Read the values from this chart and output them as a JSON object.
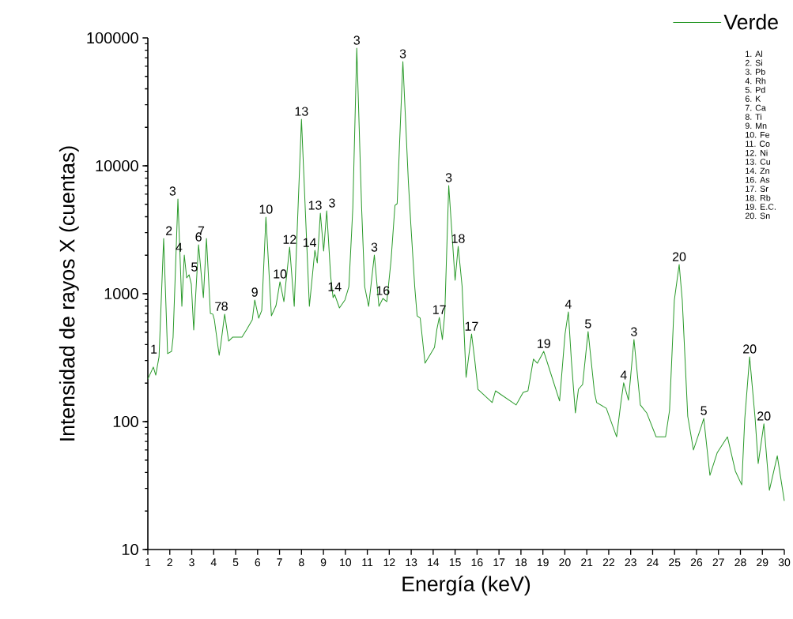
{
  "chart_data": {
    "type": "line",
    "xlabel": "Energía (keV)",
    "ylabel": "Intensidad de rayos X (cuentas)",
    "xlim": [
      1,
      30
    ],
    "ylim": [
      10,
      100000
    ],
    "log": "y",
    "xticks": [
      1,
      2,
      3,
      4,
      5,
      6,
      7,
      8,
      9,
      10,
      11,
      12,
      13,
      14,
      15,
      16,
      17,
      18,
      19,
      20,
      21,
      22,
      23,
      24,
      25,
      26,
      27,
      28,
      29,
      30
    ],
    "yticks": [
      10,
      100,
      1000,
      10000,
      100000
    ],
    "legend": "top right",
    "marker": "none",
    "line_style": "solid",
    "series": [
      {
        "name": "Verde",
        "color": "#2a9a2a",
        "x": [
          1.0,
          1.25,
          1.36,
          1.51,
          1.72,
          1.9,
          2.08,
          2.15,
          2.37,
          2.55,
          2.66,
          2.77,
          2.88,
          2.98,
          3.09,
          3.31,
          3.53,
          3.67,
          3.85,
          3.96,
          4.03,
          4.25,
          4.32,
          4.5,
          4.68,
          4.86,
          5.29,
          5.51,
          5.76,
          5.87,
          6.05,
          6.19,
          6.38,
          6.63,
          6.84,
          7.02,
          7.2,
          7.46,
          7.67,
          8.0,
          8.36,
          8.61,
          8.72,
          8.86,
          9.01,
          9.15,
          9.33,
          9.44,
          9.51,
          9.73,
          9.98,
          10.16,
          10.34,
          10.52,
          10.74,
          10.88,
          11.06,
          11.32,
          11.53,
          11.71,
          11.89,
          12.08,
          12.26,
          12.36,
          12.62,
          12.87,
          12.98,
          13.16,
          13.27,
          13.41,
          13.63,
          14.06,
          14.17,
          14.28,
          14.42,
          14.53,
          14.71,
          15.0,
          15.14,
          15.32,
          15.5,
          15.75,
          15.9,
          16.04,
          16.69,
          16.84,
          17.78,
          18.1,
          18.32,
          18.57,
          18.75,
          19.04,
          19.36,
          19.76,
          20.01,
          20.16,
          20.3,
          20.48,
          20.62,
          20.81,
          21.06,
          21.35,
          21.45,
          21.89,
          22.36,
          22.54,
          22.68,
          22.9,
          23.15,
          23.44,
          23.73,
          24.16,
          24.59,
          24.77,
          24.99,
          25.21,
          25.35,
          25.6,
          25.86,
          26.22,
          26.33,
          26.61,
          26.94,
          27.41,
          27.77,
          28.06,
          28.2,
          28.42,
          28.67,
          28.81,
          29.07,
          29.32,
          29.68,
          30.0
        ],
        "values": [
          215,
          267,
          231,
          321,
          2704,
          340,
          354,
          457,
          5508,
          796,
          2006,
          1328,
          1406,
          1186,
          520,
          2415,
          931,
          2704,
          701,
          692,
          626,
          330,
          397,
          692,
          426,
          457,
          457,
          527,
          626,
          893,
          644,
          741,
          3970,
          671,
          807,
          1239,
          867,
          2312,
          796,
          23120,
          796,
          2186,
          1742,
          4266,
          2154,
          4449,
          1367,
          931,
          986,
          774,
          893,
          1136,
          4710,
          83180,
          4710,
          1136,
          796,
          2006,
          796,
          918,
          867,
          1816,
          4909,
          5056,
          65310,
          7530,
          3540,
          1136,
          671,
          644,
          286,
          380,
          527,
          653,
          438,
          701,
          7015,
          1274,
          2344,
          1136,
          222,
          484,
          298,
          179,
          141,
          174,
          135,
          169,
          174,
          308,
          286,
          354,
          238,
          145,
          484,
          721,
          298,
          117,
          179,
          195,
          506,
          169,
          141,
          127,
          76,
          135,
          201,
          147,
          438,
          135,
          117,
          76,
          76,
          122,
          893,
          1690,
          893,
          110,
          60,
          92,
          106,
          38,
          57,
          76,
          41,
          32,
          106,
          321,
          106,
          47,
          96,
          29,
          54,
          24
        ]
      }
    ],
    "annotations": [
      {
        "text": "1",
        "x": 1.51,
        "y": 321
      },
      {
        "text": "2",
        "x": 1.72,
        "y": 2704
      },
      {
        "text": "3",
        "x": 2.37,
        "y": 5508
      },
      {
        "text": "4",
        "x": 2.66,
        "y": 2006
      },
      {
        "text": "5",
        "x": 2.88,
        "y": 1406
      },
      {
        "text": "6",
        "x": 3.31,
        "y": 2415
      },
      {
        "text": "7",
        "x": 3.67,
        "y": 2704
      },
      {
        "text": "7",
        "x": 3.96,
        "y": 692
      },
      {
        "text": "8",
        "x": 4.5,
        "y": 692
      },
      {
        "text": "9",
        "x": 5.87,
        "y": 893
      },
      {
        "text": "10",
        "x": 6.38,
        "y": 3970
      },
      {
        "text": "10",
        "x": 7.02,
        "y": 1239
      },
      {
        "text": "12",
        "x": 7.46,
        "y": 2312
      },
      {
        "text": "13",
        "x": 8.0,
        "y": 23120
      },
      {
        "text": "14",
        "x": 8.61,
        "y": 2186
      },
      {
        "text": "13",
        "x": 8.86,
        "y": 4266
      },
      {
        "text": "3",
        "x": 9.15,
        "y": 4449
      },
      {
        "text": "14",
        "x": 9.51,
        "y": 986
      },
      {
        "text": "3",
        "x": 10.52,
        "y": 83180
      },
      {
        "text": "3",
        "x": 11.32,
        "y": 2006
      },
      {
        "text": "16",
        "x": 11.71,
        "y": 918
      },
      {
        "text": "3",
        "x": 12.62,
        "y": 65310
      },
      {
        "text": "17",
        "x": 14.28,
        "y": 653
      },
      {
        "text": "3",
        "x": 14.71,
        "y": 7015
      },
      {
        "text": "18",
        "x": 15.14,
        "y": 2344
      },
      {
        "text": "17",
        "x": 15.75,
        "y": 484
      },
      {
        "text": "19",
        "x": 19.04,
        "y": 354
      },
      {
        "text": "4",
        "x": 20.16,
        "y": 721
      },
      {
        "text": "5",
        "x": 21.06,
        "y": 506
      },
      {
        "text": "4",
        "x": 22.68,
        "y": 201
      },
      {
        "text": "3",
        "x": 23.15,
        "y": 438
      },
      {
        "text": "20",
        "x": 25.21,
        "y": 1690
      },
      {
        "text": "5",
        "x": 26.33,
        "y": 106
      },
      {
        "text": "20",
        "x": 28.42,
        "y": 321
      },
      {
        "text": "20",
        "x": 29.07,
        "y": 96
      },
      "1.  Al",
      "2.  Si",
      "3.  Pb",
      "4.  Rh",
      "5.  Pd",
      "6.  K",
      "7.  Ca",
      "8.  Ti",
      "9.  Mn",
      "10.  Fe",
      "11.  Co",
      "12.  Ni",
      "13.  Cu",
      "14.  Zn",
      "16.  As",
      "17.  Sr",
      "18.  Rb",
      "19.  E.C.",
      "20.  Sn"
    ]
  }
}
